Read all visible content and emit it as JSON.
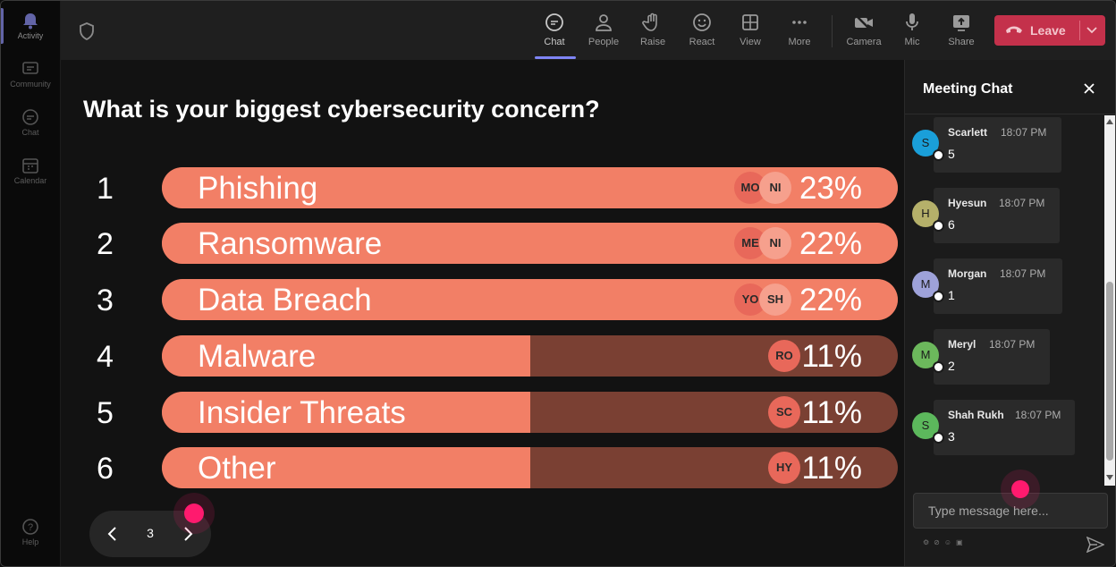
{
  "rail": {
    "items": [
      {
        "label": "Activity",
        "icon": "bell-icon"
      },
      {
        "label": "Community",
        "icon": "community-icon"
      },
      {
        "label": "Chat",
        "icon": "chat-icon"
      },
      {
        "label": "Calendar",
        "icon": "calendar-icon"
      }
    ],
    "help": {
      "label": "Help",
      "icon": "help-icon"
    }
  },
  "toolbar": {
    "chat": "Chat",
    "people": "People",
    "raise": "Raise",
    "react": "React",
    "view": "View",
    "more": "More",
    "camera": "Camera",
    "mic": "Mic",
    "share": "Share",
    "leave": "Leave"
  },
  "poll": {
    "question": "What is your biggest cybersecurity concern?",
    "options": [
      {
        "rank": "1",
        "label": "Phishing",
        "percent": "23%",
        "fill": 1.0,
        "avatars": [
          "MO",
          "NI"
        ]
      },
      {
        "rank": "2",
        "label": "Ransomware",
        "percent": "22%",
        "fill": 1.0,
        "avatars": [
          "ME",
          "NI"
        ]
      },
      {
        "rank": "3",
        "label": "Data Breach",
        "percent": "22%",
        "fill": 1.0,
        "avatars": [
          "YO",
          "SH"
        ]
      },
      {
        "rank": "4",
        "label": "Malware",
        "percent": "11%",
        "fill": 0.5,
        "avatars": [
          "RO"
        ]
      },
      {
        "rank": "5",
        "label": "Insider Threats",
        "percent": "11%",
        "fill": 0.5,
        "avatars": [
          "SC"
        ]
      },
      {
        "rank": "6",
        "label": "Other",
        "percent": "11%",
        "fill": 0.5,
        "avatars": [
          "HY"
        ]
      }
    ],
    "page": "3"
  },
  "chat": {
    "title": "Meeting Chat",
    "messages": [
      {
        "initial": "S",
        "name": "Scarlett",
        "time": "18:07 PM",
        "text": "5",
        "color": "#1a9fd9"
      },
      {
        "initial": "H",
        "name": "Hyesun",
        "time": "18:07 PM",
        "text": "6",
        "color": "#b5b06a"
      },
      {
        "initial": "M",
        "name": "Morgan",
        "time": "18:07 PM",
        "text": "1",
        "color": "#9ea2d9"
      },
      {
        "initial": "M",
        "name": "Meryl",
        "time": "18:07 PM",
        "text": "2",
        "color": "#6cb85c"
      },
      {
        "initial": "S",
        "name": "Shah Rukh",
        "time": "18:07 PM",
        "text": "3",
        "color": "#5cb85c"
      }
    ],
    "input_placeholder": "Type message here..."
  },
  "colors": {
    "bar_fill": "#f27f66",
    "bar_empty": "#7a4033",
    "leave": "#c4314b",
    "accent": "#7f85f5",
    "cursor": "#ff1a6e"
  }
}
